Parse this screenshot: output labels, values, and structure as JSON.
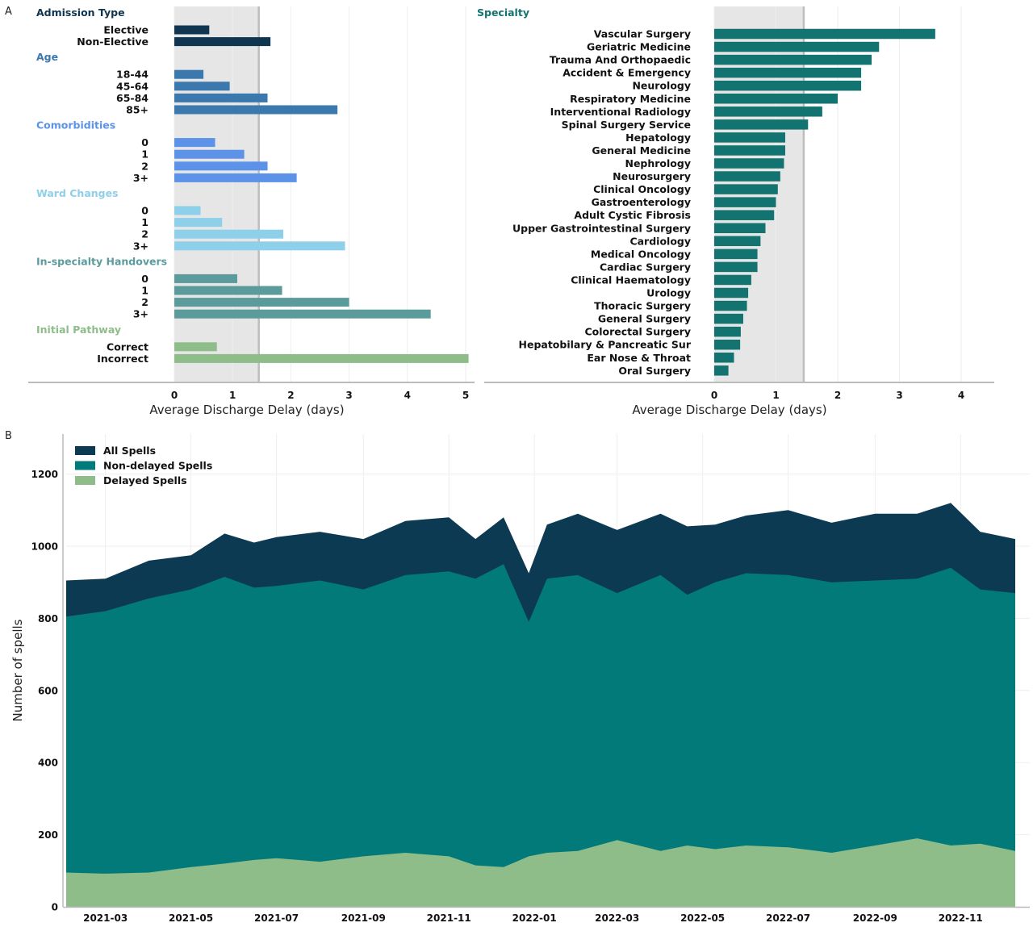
{
  "panel_labels": {
    "a": "A",
    "b": "B"
  },
  "colors": {
    "admission": "#0f3550",
    "age": "#3a78ad",
    "comorbidities": "#5c93e8",
    "ward": "#8ecfe9",
    "handovers": "#5b9b9c",
    "pathway": "#8ebd8a",
    "specialty": "#137371",
    "shade": "#e6e6e6",
    "shade_line": "#bdbdbd",
    "all_spells": "#0b3a52",
    "non_delayed": "#037a7a",
    "delayed": "#8ebd8a"
  },
  "chart_data": [
    {
      "id": "factors",
      "type": "bar",
      "orientation": "horizontal",
      "xlabel": "Average Discharge Delay (days)",
      "ylabel": "",
      "xlim": [
        0,
        5
      ],
      "xticks": [
        "0",
        "1",
        "2",
        "3",
        "4",
        "5"
      ],
      "shaded_region": [
        0,
        1.45
      ],
      "groups": [
        {
          "name": "Admission Type",
          "color_key": "admission",
          "categories": [
            "Elective",
            "Non-Elective"
          ],
          "values": [
            0.6,
            1.65
          ]
        },
        {
          "name": "Age",
          "color_key": "age",
          "categories": [
            "18-44",
            "45-64",
            "65-84",
            "85+"
          ],
          "values": [
            0.5,
            0.95,
            1.6,
            2.8
          ]
        },
        {
          "name": "Comorbidities",
          "color_key": "comorbidities",
          "categories": [
            "0",
            "1",
            "2",
            "3+"
          ],
          "values": [
            0.7,
            1.2,
            1.6,
            2.1
          ]
        },
        {
          "name": "Ward Changes",
          "color_key": "ward",
          "categories": [
            "0",
            "1",
            "2",
            "3+"
          ],
          "values": [
            0.45,
            0.82,
            1.87,
            2.93
          ]
        },
        {
          "name": "In-specialty Handovers",
          "color_key": "handovers",
          "categories": [
            "0",
            "1",
            "2",
            "3+"
          ],
          "values": [
            1.08,
            1.85,
            3.0,
            4.4
          ]
        },
        {
          "name": "Initial Pathway",
          "color_key": "pathway",
          "categories": [
            "Correct",
            "Incorrect"
          ],
          "values": [
            0.73,
            5.05
          ]
        }
      ]
    },
    {
      "id": "specialty",
      "type": "bar",
      "orientation": "horizontal",
      "title": "Specialty",
      "xlabel": "Average Discharge Delay (days)",
      "ylabel": "",
      "xlim": [
        0,
        4.3
      ],
      "xticks": [
        "0",
        "1",
        "2",
        "3",
        "4"
      ],
      "shaded_region": [
        0,
        1.45
      ],
      "categories": [
        "Vascular Surgery",
        "Geriatric Medicine",
        "Trauma And Orthopaedic",
        "Accident & Emergency",
        "Neurology",
        "Respiratory Medicine",
        "Interventional Radiology",
        "Spinal Surgery Service",
        "Hepatology",
        "General Medicine",
        "Nephrology",
        "Neurosurgery",
        "Clinical Oncology",
        "Gastroenterology",
        "Adult Cystic Fibrosis",
        "Upper Gastrointestinal Surgery",
        "Cardiology",
        "Medical Oncology",
        "Cardiac Surgery",
        "Clinical Haematology",
        "Urology",
        "Thoracic Surgery",
        "General Surgery",
        "Colorectal Surgery",
        "Hepatobilary & Pancreatic Sur",
        "Ear Nose & Throat",
        "Oral Surgery"
      ],
      "values": [
        3.58,
        2.67,
        2.55,
        2.38,
        2.38,
        2.0,
        1.75,
        1.52,
        1.15,
        1.15,
        1.13,
        1.07,
        1.03,
        1.0,
        0.97,
        0.83,
        0.75,
        0.7,
        0.7,
        0.6,
        0.55,
        0.53,
        0.47,
        0.43,
        0.42,
        0.32,
        0.23
      ]
    },
    {
      "id": "spells",
      "type": "area",
      "ylabel": "Number of spells",
      "xlabel": "",
      "ylim": [
        0,
        1300
      ],
      "yticks": [
        "0",
        "200",
        "400",
        "600",
        "800",
        "1000",
        "1200"
      ],
      "xticks": [
        "2021-03",
        "2021-05",
        "2021-07",
        "2021-09",
        "2021-11",
        "2022-01",
        "2022-03",
        "2022-05",
        "2022-07",
        "2022-09",
        "2022-11"
      ],
      "grid": true,
      "legend_position": "top-left",
      "x_start": "2021-02-01",
      "x_end": "2022-12-10",
      "series": [
        {
          "name": "All Spells",
          "color_key": "all_spells",
          "x": [
            "2021-02-01",
            "2021-03-01",
            "2021-04-01",
            "2021-05-01",
            "2021-05-25",
            "2021-06-15",
            "2021-07-01",
            "2021-08-01",
            "2021-09-01",
            "2021-10-01",
            "2021-11-01",
            "2021-11-20",
            "2021-12-10",
            "2021-12-28",
            "2022-01-10",
            "2022-02-01",
            "2022-03-01",
            "2022-04-01",
            "2022-04-20",
            "2022-05-10",
            "2022-06-01",
            "2022-07-01",
            "2022-08-01",
            "2022-09-01",
            "2022-10-01",
            "2022-10-25",
            "2022-11-15",
            "2022-12-10"
          ],
          "values": [
            905,
            910,
            960,
            975,
            1035,
            1010,
            1025,
            1040,
            1020,
            1070,
            1080,
            1020,
            1080,
            925,
            1060,
            1090,
            1045,
            1090,
            1055,
            1060,
            1085,
            1100,
            1065,
            1090,
            1090,
            1120,
            1040,
            1020
          ]
        },
        {
          "name": "Non-delayed Spells",
          "color_key": "non_delayed",
          "x": [
            "2021-02-01",
            "2021-03-01",
            "2021-04-01",
            "2021-05-01",
            "2021-05-25",
            "2021-06-15",
            "2021-07-01",
            "2021-08-01",
            "2021-09-01",
            "2021-10-01",
            "2021-11-01",
            "2021-11-20",
            "2021-12-10",
            "2021-12-28",
            "2022-01-10",
            "2022-02-01",
            "2022-03-01",
            "2022-04-01",
            "2022-04-20",
            "2022-05-10",
            "2022-06-01",
            "2022-07-01",
            "2022-08-01",
            "2022-09-01",
            "2022-10-01",
            "2022-10-25",
            "2022-11-15",
            "2022-12-10"
          ],
          "values": [
            805,
            820,
            855,
            880,
            915,
            885,
            890,
            905,
            880,
            920,
            930,
            910,
            950,
            790,
            910,
            920,
            870,
            920,
            865,
            900,
            925,
            920,
            900,
            905,
            910,
            940,
            880,
            870
          ]
        },
        {
          "name": "Delayed Spells",
          "color_key": "delayed",
          "x": [
            "2021-02-01",
            "2021-03-01",
            "2021-04-01",
            "2021-05-01",
            "2021-05-25",
            "2021-06-15",
            "2021-07-01",
            "2021-08-01",
            "2021-09-01",
            "2021-10-01",
            "2021-11-01",
            "2021-11-20",
            "2021-12-10",
            "2021-12-28",
            "2022-01-10",
            "2022-02-01",
            "2022-03-01",
            "2022-04-01",
            "2022-04-20",
            "2022-05-10",
            "2022-06-01",
            "2022-07-01",
            "2022-08-01",
            "2022-09-01",
            "2022-10-01",
            "2022-10-25",
            "2022-11-15",
            "2022-12-10"
          ],
          "values": [
            95,
            92,
            95,
            110,
            120,
            130,
            135,
            125,
            140,
            150,
            140,
            115,
            110,
            140,
            150,
            155,
            185,
            155,
            170,
            160,
            170,
            165,
            150,
            170,
            190,
            170,
            175,
            155
          ]
        }
      ]
    }
  ]
}
